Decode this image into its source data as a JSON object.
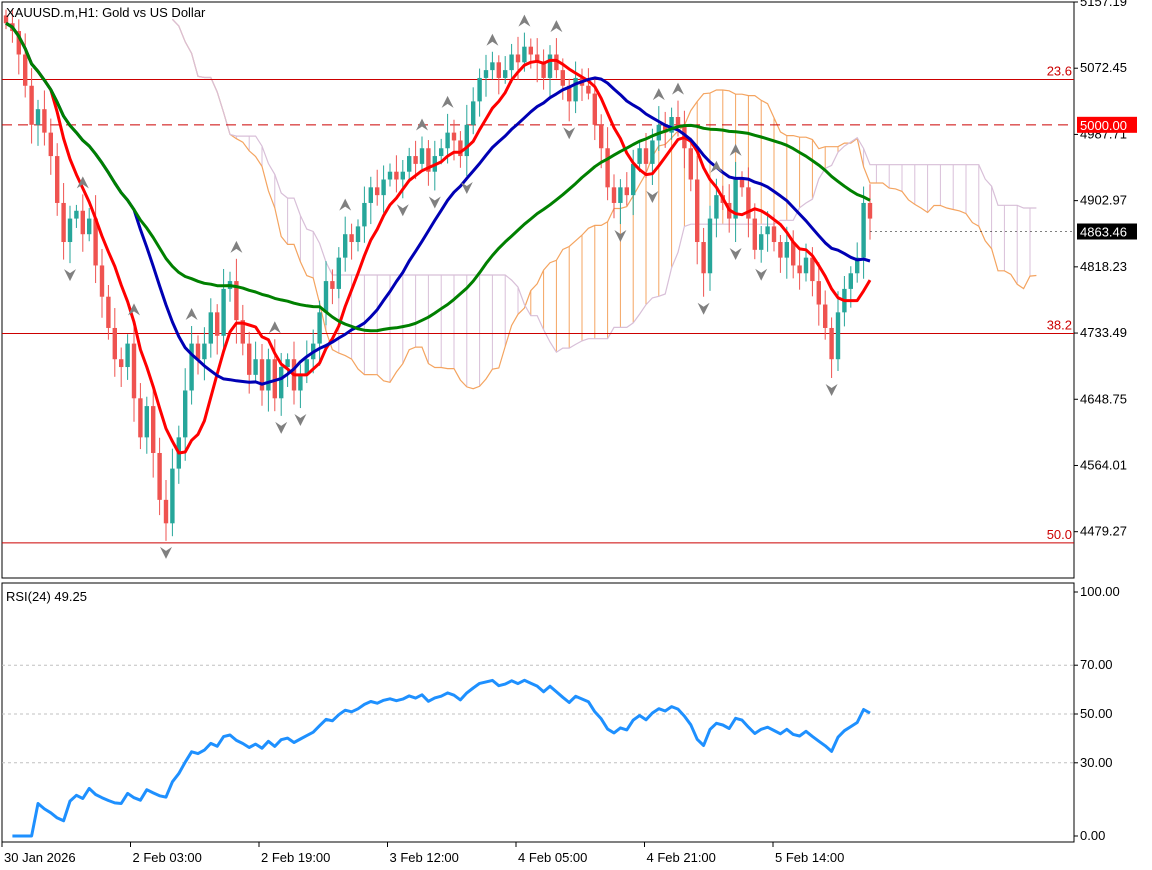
{
  "header": {
    "symbol": "XAUUSD.m,H1:  Gold vs US Dollar"
  },
  "colors": {
    "bull": "#26a69a",
    "bear": "#ef5350",
    "ma_fast": "#ff0000",
    "ma_mid": "#0000b4",
    "ma_slow": "#008000",
    "kumo_up": "#f4a460",
    "kumo_down": "#d8bfd8",
    "fib": "#cc0000",
    "rsi": "#1e90ff",
    "fractal": "#808080"
  },
  "chart_data": [
    {
      "type": "candlestick",
      "title": "XAUUSD.m,H1:  Gold vs US Dollar",
      "ylim": [
        4420,
        5157.19
      ],
      "y_ticks": [
        "5157.19",
        "5072.45",
        "4987.71",
        "4902.97",
        "4818.23",
        "4733.49",
        "4648.75",
        "4564.01",
        "4479.27"
      ],
      "x_ticks": [
        "30 Jan 2026",
        "2 Feb 03:00",
        "2 Feb 19:00",
        "3 Feb 12:00",
        "4 Feb 05:00",
        "4 Feb 21:00",
        "5 Feb 14:00"
      ],
      "current_price": "4863.46",
      "fib_levels": [
        {
          "label": "23.6",
          "price": 5058
        },
        {
          "label": "38.2",
          "price": 4733
        },
        {
          "label": "50.0",
          "price": 4465
        }
      ],
      "key_level": {
        "label": "5000.00",
        "price": 5000
      },
      "close": [
        5130,
        5120,
        5090,
        5050,
        5000,
        5020,
        4990,
        4960,
        4900,
        4850,
        4880,
        4890,
        4860,
        4880,
        4820,
        4780,
        4740,
        4700,
        4690,
        4720,
        4650,
        4600,
        4640,
        4580,
        4520,
        4490,
        4560,
        4600,
        4660,
        4720,
        4700,
        4720,
        4760,
        4730,
        4790,
        4800,
        4750,
        4720,
        4680,
        4700,
        4660,
        4700,
        4650,
        4690,
        4700,
        4660,
        4680,
        4700,
        4720,
        4760,
        4800,
        4790,
        4830,
        4860,
        4850,
        4870,
        4900,
        4920,
        4910,
        4930,
        4940,
        4930,
        4940,
        4960,
        4950,
        4970,
        4940,
        4960,
        4970,
        4990,
        4980,
        4960,
        5000,
        5030,
        5060,
        5070,
        5080,
        5060,
        5070,
        5090,
        5080,
        5100,
        5090,
        5080,
        5060,
        5090,
        5070,
        5050,
        5030,
        5060,
        5050,
        5040,
        5000,
        4970,
        4920,
        4900,
        4920,
        4910,
        4950,
        4970,
        4950,
        4980,
        5000,
        4990,
        5010,
        5000,
        4970,
        4930,
        4850,
        4810,
        4880,
        4910,
        4900,
        4880,
        4930,
        4920,
        4880,
        4840,
        4860,
        4870,
        4850,
        4830,
        4850,
        4820,
        4810,
        4830,
        4800,
        4770,
        4740,
        4700,
        4760,
        4790,
        4810,
        4830,
        4900,
        4880
      ]
    },
    {
      "type": "line",
      "title": "RSI(24) 49.25",
      "ylim": [
        0,
        100
      ],
      "y_ticks": [
        "100.00",
        "70.00",
        "50.00",
        "30.00",
        "0.00"
      ],
      "levels": [
        70,
        50,
        30
      ]
    }
  ]
}
